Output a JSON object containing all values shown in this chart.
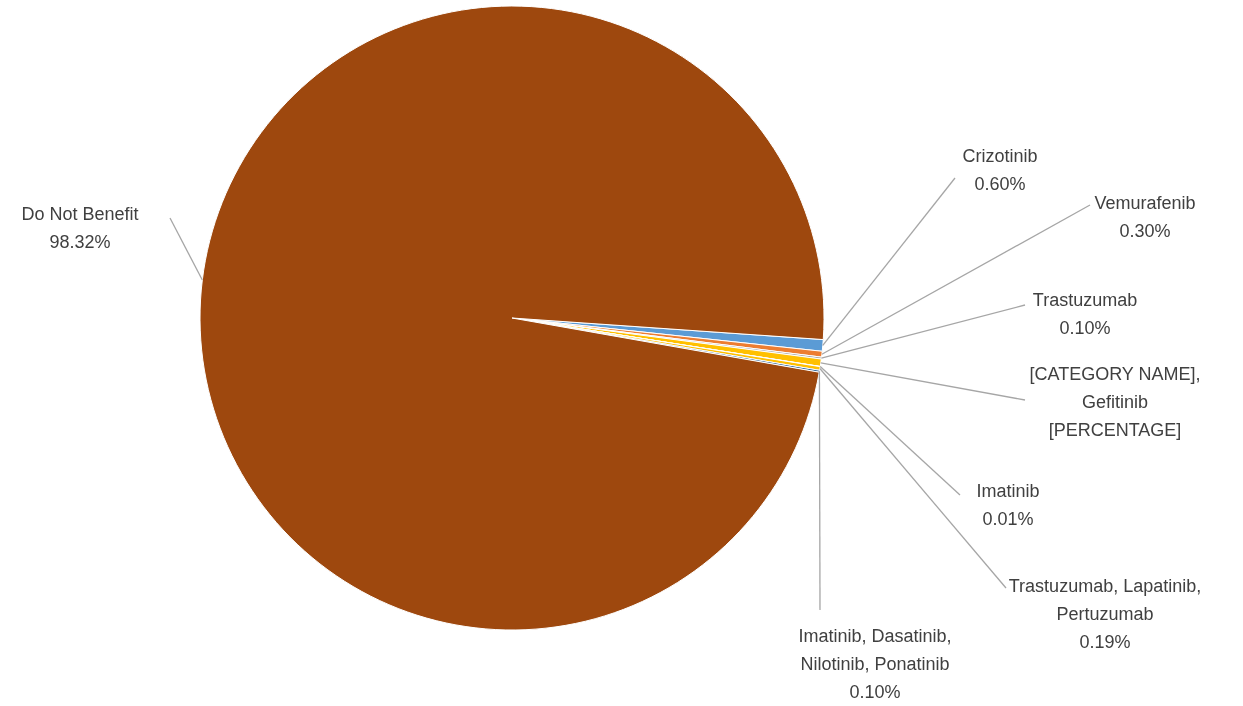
{
  "chart_data": {
    "type": "pie",
    "categories": [
      "Crizotinib",
      "Vemurafenib",
      "Trastuzumab",
      "[CATEGORY NAME], Gefitinib",
      "Imatinib",
      "Trastuzumab, Lapatinib, Pertuzumab",
      "Imatinib, Dasatinib, Nilotinib, Ponatinib",
      "Do Not Benefit"
    ],
    "values": [
      0.6,
      0.3,
      0.1,
      0.38,
      0.01,
      0.19,
      0.1,
      98.32
    ],
    "value_labels": [
      "0.60%",
      "0.30%",
      "0.10%",
      "[PERCENTAGE]",
      "0.01%",
      "0.19%",
      "0.10%",
      "98.32%"
    ],
    "colors": [
      "#5b9bd5",
      "#ed7d31",
      "#a5a5a5",
      "#ffc000",
      "#4472c4",
      "#ffc000",
      "#255e91",
      "#9e480e"
    ]
  }
}
